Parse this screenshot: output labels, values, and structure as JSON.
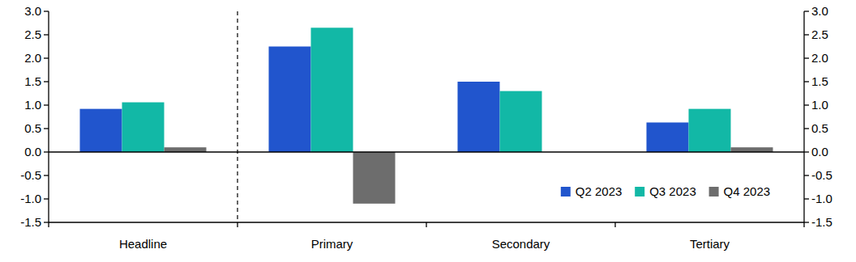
{
  "chart_data": {
    "type": "bar",
    "categories": [
      "Headline",
      "Primary",
      "Secondary",
      "Tertiary"
    ],
    "series": [
      {
        "name": "Q2 2023",
        "color": "#2155cd",
        "values": [
          0.92,
          2.25,
          1.5,
          0.63
        ]
      },
      {
        "name": "Q3 2023",
        "color": "#12b8a6",
        "values": [
          1.06,
          2.65,
          1.3,
          0.92
        ]
      },
      {
        "name": "Q4 2023",
        "color": "#6d6d6d",
        "values": [
          0.1,
          -1.1,
          0.0,
          0.1
        ]
      }
    ],
    "ylim": [
      -1.5,
      3.0
    ],
    "yticks": [
      -1.5,
      {
        "value": -1,
        "label": "-1.0"
      },
      -0.5,
      {
        "value": 0,
        "label": "0.0"
      },
      0.5,
      {
        "value": 1,
        "label": "1.0"
      },
      1.5,
      {
        "value": 2,
        "label": "2.0"
      },
      2.5,
      {
        "value": 3,
        "label": "3.0"
      }
    ],
    "legend": "lower right",
    "grid": false
  }
}
